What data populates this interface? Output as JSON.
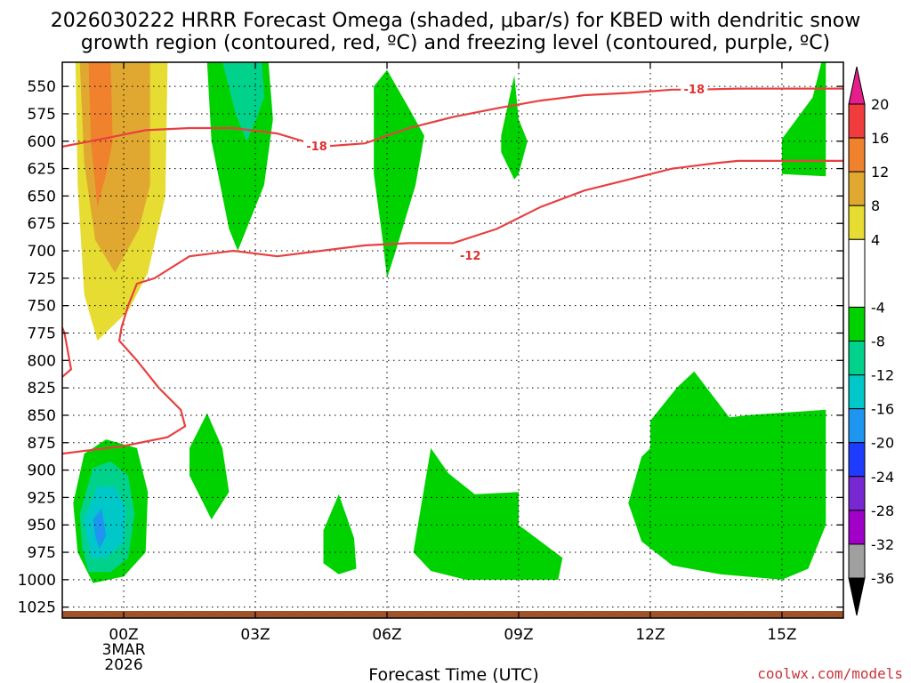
{
  "chart_data": {
    "type": "heatmap",
    "title_line1": "2026030222 HRRR Forecast Omega (shaded, μbar/s) for KBED with dendritic snow",
    "title_line2": "growth region (contoured, red, ºC) and freezing level (contoured, purple, ºC)",
    "xlabel": "Forecast Time (UTC)",
    "credit": "coolwx.com/models",
    "y_axis": {
      "scale": "pressure",
      "ylim": [
        528,
        1035
      ],
      "ticks": [
        550,
        575,
        600,
        625,
        650,
        675,
        700,
        725,
        750,
        775,
        800,
        825,
        850,
        875,
        900,
        925,
        950,
        975,
        1000,
        1025
      ]
    },
    "x_axis": {
      "xlim": [
        -1.4,
        16.4
      ],
      "ticks": [
        {
          "hour": 0,
          "label": "00Z",
          "sub1": "3MAR",
          "sub2": "2026"
        },
        {
          "hour": 3,
          "label": "03Z"
        },
        {
          "hour": 6,
          "label": "06Z"
        },
        {
          "hour": 9,
          "label": "09Z"
        },
        {
          "hour": 12,
          "label": "12Z"
        },
        {
          "hour": 15,
          "label": "15Z"
        }
      ]
    },
    "colorbar": {
      "labels": [
        "20",
        "16",
        "12",
        "8",
        "4",
        "-4",
        "-8",
        "-12",
        "-16",
        "-20",
        "-24",
        "-28",
        "-32",
        "-36"
      ],
      "bands": [
        {
          "from": 20,
          "to": 24,
          "color": "#e61e8c"
        },
        {
          "from": 16,
          "to": 20,
          "color": "#f03c3c"
        },
        {
          "from": 12,
          "to": 16,
          "color": "#f0822d"
        },
        {
          "from": 8,
          "to": 12,
          "color": "#e0a830"
        },
        {
          "from": 4,
          "to": 8,
          "color": "#e6dc32"
        },
        {
          "from": -4,
          "to": 4,
          "color": "#ffffff"
        },
        {
          "from": -8,
          "to": -4,
          "color": "#00d200"
        },
        {
          "from": -12,
          "to": -8,
          "color": "#00d28c"
        },
        {
          "from": -16,
          "to": -12,
          "color": "#00c8c8"
        },
        {
          "from": -20,
          "to": -16,
          "color": "#1e96f0"
        },
        {
          "from": -24,
          "to": -20,
          "color": "#1e3cff"
        },
        {
          "from": -28,
          "to": -24,
          "color": "#7828d2"
        },
        {
          "from": -32,
          "to": -28,
          "color": "#a000c8"
        },
        {
          "from": -36,
          "to": -32,
          "color": "#a0a0a0"
        },
        {
          "from": -40,
          "to": -36,
          "color": "#000000"
        }
      ]
    },
    "shaded_regions": [
      {
        "color": "#e6dc32",
        "points": [
          [
            -1.1,
            528
          ],
          [
            1.0,
            528
          ],
          [
            0.95,
            650
          ],
          [
            0.55,
            720
          ],
          [
            0.1,
            755
          ],
          [
            -0.6,
            782
          ],
          [
            -0.9,
            740
          ],
          [
            -1.05,
            640
          ]
        ]
      },
      {
        "color": "#e0a830",
        "points": [
          [
            -1.0,
            528
          ],
          [
            0.6,
            528
          ],
          [
            0.6,
            640
          ],
          [
            0.35,
            680
          ],
          [
            -0.2,
            720
          ],
          [
            -0.65,
            690
          ],
          [
            -0.9,
            620
          ]
        ]
      },
      {
        "color": "#f0822d",
        "points": [
          [
            -0.8,
            528
          ],
          [
            -0.3,
            528
          ],
          [
            -0.25,
            600
          ],
          [
            -0.4,
            630
          ],
          [
            -0.6,
            660
          ],
          [
            -0.75,
            600
          ]
        ]
      },
      {
        "color": "#00d200",
        "points": [
          [
            1.9,
            528
          ],
          [
            3.3,
            528
          ],
          [
            3.4,
            580
          ],
          [
            3.2,
            640
          ],
          [
            2.9,
            670
          ],
          [
            2.6,
            700
          ],
          [
            2.4,
            680
          ],
          [
            2.0,
            600
          ]
        ]
      },
      {
        "color": "#00d28c",
        "points": [
          [
            2.25,
            528
          ],
          [
            3.15,
            528
          ],
          [
            3.2,
            560
          ],
          [
            3.0,
            582
          ],
          [
            2.8,
            600
          ],
          [
            2.55,
            575
          ]
        ]
      },
      {
        "color": "#00d200",
        "points": [
          [
            5.7,
            550
          ],
          [
            6.0,
            535
          ],
          [
            6.5,
            570
          ],
          [
            6.85,
            595
          ],
          [
            6.65,
            640
          ],
          [
            6.2,
            700
          ],
          [
            6.0,
            725
          ],
          [
            5.9,
            690
          ],
          [
            5.7,
            630
          ]
        ]
      },
      {
        "color": "#00d200",
        "points": [
          [
            8.6,
            595
          ],
          [
            8.9,
            540
          ],
          [
            9.0,
            580
          ],
          [
            9.2,
            600
          ],
          [
            9.0,
            630
          ],
          [
            8.9,
            635
          ],
          [
            8.6,
            610
          ]
        ]
      },
      {
        "color": "#00d200",
        "points": [
          [
            15.0,
            598
          ],
          [
            15.7,
            560
          ],
          [
            15.9,
            528
          ],
          [
            16.0,
            528
          ],
          [
            16.0,
            632
          ],
          [
            15.0,
            630
          ]
        ]
      },
      {
        "color": "#00d200",
        "points": [
          [
            -1.15,
            930
          ],
          [
            -0.9,
            885
          ],
          [
            -0.4,
            872
          ],
          [
            0.3,
            880
          ],
          [
            0.55,
            920
          ],
          [
            0.5,
            975
          ],
          [
            0.0,
            997
          ],
          [
            -0.7,
            1003
          ],
          [
            -1.05,
            975
          ]
        ]
      },
      {
        "color": "#00d28c",
        "points": [
          [
            -1.0,
            940
          ],
          [
            -0.7,
            898
          ],
          [
            -0.3,
            892
          ],
          [
            0.1,
            905
          ],
          [
            0.25,
            940
          ],
          [
            0.1,
            980
          ],
          [
            -0.3,
            993
          ],
          [
            -0.8,
            993
          ],
          [
            -0.95,
            970
          ]
        ]
      },
      {
        "color": "#00c8c8",
        "points": [
          [
            -0.9,
            945
          ],
          [
            -0.6,
            915
          ],
          [
            -0.2,
            915
          ],
          [
            0.05,
            935
          ],
          [
            0.0,
            965
          ],
          [
            -0.4,
            980
          ],
          [
            -0.75,
            980
          ]
        ]
      },
      {
        "color": "#1e96f0",
        "points": [
          [
            -0.7,
            945
          ],
          [
            -0.5,
            935
          ],
          [
            -0.4,
            960
          ],
          [
            -0.55,
            972
          ],
          [
            -0.65,
            960
          ]
        ]
      },
      {
        "color": "#00d200",
        "points": [
          [
            1.5,
            880
          ],
          [
            1.9,
            848
          ],
          [
            2.25,
            880
          ],
          [
            2.4,
            920
          ],
          [
            2.0,
            945
          ],
          [
            1.5,
            905
          ]
        ]
      },
      {
        "color": "#00d200",
        "points": [
          [
            4.55,
            955
          ],
          [
            4.9,
            922
          ],
          [
            5.25,
            962
          ],
          [
            5.3,
            990
          ],
          [
            4.9,
            995
          ],
          [
            4.55,
            985
          ]
        ]
      },
      {
        "color": "#00d200",
        "points": [
          [
            6.6,
            975
          ],
          [
            7.0,
            880
          ],
          [
            7.4,
            903
          ],
          [
            8.0,
            922
          ],
          [
            9.0,
            920
          ],
          [
            9.0,
            950
          ],
          [
            10.0,
            980
          ],
          [
            9.9,
            1000
          ],
          [
            8.5,
            1000
          ],
          [
            7.8,
            1000
          ],
          [
            7.0,
            992
          ]
        ]
      },
      {
        "color": "#00d200",
        "points": [
          [
            11.5,
            930
          ],
          [
            11.8,
            888
          ],
          [
            12.0,
            880
          ],
          [
            12.0,
            855
          ],
          [
            12.6,
            825
          ],
          [
            13.0,
            810
          ],
          [
            13.8,
            852
          ],
          [
            14.2,
            850
          ],
          [
            16.0,
            845
          ],
          [
            16.0,
            950
          ],
          [
            15.6,
            990
          ],
          [
            15.0,
            1000
          ],
          [
            13.6,
            995
          ],
          [
            12.5,
            987
          ],
          [
            11.8,
            965
          ]
        ]
      }
    ],
    "isotherms": [
      {
        "label": "-12",
        "label_at": [
          7.9,
          692
        ],
        "points": [
          [
            -1.4,
            815
          ],
          [
            -1.2,
            808
          ],
          [
            -1.35,
            775
          ],
          [
            -1.4,
            770
          ]
        ]
      },
      {
        "label": "-12",
        "label_at": [
          7.9,
          692
        ],
        "points": [
          [
            -1.4,
            885
          ],
          [
            0.0,
            878
          ],
          [
            1.0,
            870
          ],
          [
            1.4,
            860
          ],
          [
            1.3,
            845
          ],
          [
            0.8,
            825
          ],
          [
            0.3,
            800
          ],
          [
            -0.1,
            782
          ],
          [
            -0.05,
            770
          ],
          [
            0.1,
            750
          ],
          [
            0.3,
            730
          ],
          [
            0.7,
            725
          ],
          [
            1.5,
            705
          ],
          [
            2.5,
            700
          ],
          [
            3.5,
            705
          ],
          [
            4.5,
            700
          ],
          [
            5.5,
            695
          ],
          [
            6.5,
            693
          ],
          [
            7.5,
            693
          ],
          [
            8.5,
            680
          ],
          [
            9.5,
            660
          ],
          [
            10.5,
            645
          ],
          [
            11.5,
            635
          ],
          [
            12.5,
            625
          ],
          [
            13.5,
            620
          ],
          [
            14.0,
            618
          ],
          [
            15.0,
            618
          ],
          [
            16.4,
            618
          ]
        ]
      },
      {
        "label": "-18",
        "label_at": [
          4.4,
          605
        ],
        "points": [
          [
            -1.4,
            605
          ],
          [
            -0.5,
            598
          ],
          [
            0.5,
            590
          ],
          [
            1.5,
            588
          ],
          [
            2.5,
            588
          ],
          [
            3.5,
            593
          ],
          [
            4.5,
            605
          ],
          [
            5.5,
            602
          ],
          [
            6.5,
            588
          ],
          [
            7.5,
            578
          ],
          [
            8.5,
            570
          ],
          [
            9.5,
            563
          ],
          [
            10.5,
            558
          ],
          [
            11.5,
            556
          ],
          [
            12.5,
            553
          ],
          [
            13.0,
            553
          ],
          [
            14.0,
            552
          ],
          [
            15.0,
            552
          ],
          [
            16.4,
            552
          ]
        ]
      }
    ],
    "isotherm_labels": [
      {
        "text": "-12",
        "hour": 7.9,
        "p": 705
      },
      {
        "text": "-18",
        "hour": 4.4,
        "p": 605
      },
      {
        "text": "-18",
        "hour": 13.0,
        "p": 553
      }
    ],
    "grid": true,
    "terrain_color": "#a0522d"
  }
}
